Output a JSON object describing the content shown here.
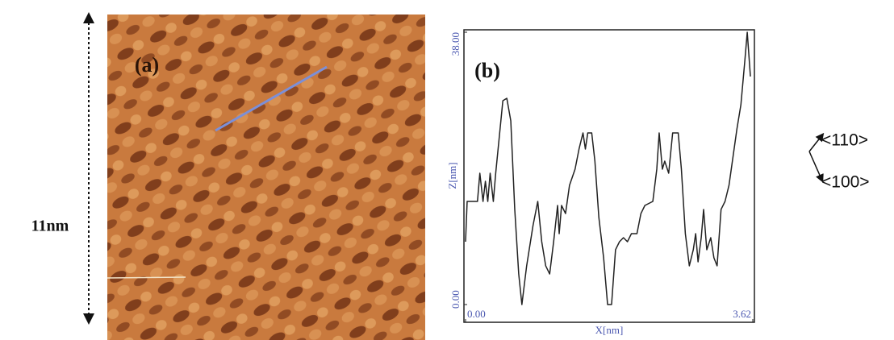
{
  "image_panel": {
    "label": "(a)",
    "scale_label": "11nm"
  },
  "directions": [
    "<110>",
    "<100>"
  ],
  "chart_data": {
    "type": "line",
    "panel_label": "(b)",
    "xlabel": "X[nm]",
    "ylabel": "Z[nm]",
    "color": "#222222",
    "xlim": [
      0,
      3.62
    ],
    "ylim": [
      0,
      38
    ],
    "xticks": [
      {
        "value": 0,
        "label": "0.00"
      },
      3.62
    ],
    "yticks": [
      {
        "value": 0,
        "label": "0.00"
      },
      {
        "value": 38,
        "label": "38.00"
      }
    ],
    "x": [
      0.0,
      0.02,
      0.05,
      0.15,
      0.18,
      0.22,
      0.25,
      0.28,
      0.31,
      0.35,
      0.38,
      0.42,
      0.47,
      0.52,
      0.57,
      0.62,
      0.67,
      0.71,
      0.77,
      0.85,
      0.91,
      0.96,
      1.01,
      1.06,
      1.11,
      1.16,
      1.18,
      1.21,
      1.26,
      1.31,
      1.38,
      1.43,
      1.48,
      1.51,
      1.54,
      1.59,
      1.63,
      1.68,
      1.74,
      1.79,
      1.84,
      1.89,
      1.94,
      1.99,
      2.04,
      2.09,
      2.16,
      2.21,
      2.26,
      2.36,
      2.41,
      2.44,
      2.48,
      2.51,
      2.56,
      2.61,
      2.68,
      2.72,
      2.77,
      2.82,
      2.87,
      2.9,
      2.93,
      2.97,
      3.0,
      3.04,
      3.09,
      3.13,
      3.17,
      3.22,
      3.27,
      3.32,
      3.42,
      3.47,
      3.52,
      3.55,
      3.59
    ],
    "values": [
      8.77,
      14.39,
      14.39,
      14.39,
      18.33,
      14.39,
      17.2,
      14.39,
      18.33,
      14.39,
      18.33,
      22.82,
      28.44,
      28.78,
      25.63,
      13.27,
      4.27,
      0,
      5.4,
      11.02,
      14.39,
      8.77,
      5.4,
      4.27,
      8.77,
      13.83,
      9.89,
      13.83,
      12.7,
      16.64,
      18.89,
      21.7,
      23.95,
      21.7,
      23.95,
      23.95,
      20.01,
      12.14,
      6.52,
      0,
      0,
      7.65,
      8.77,
      9.33,
      8.77,
      9.89,
      9.89,
      12.7,
      13.83,
      14.39,
      18.89,
      23.95,
      18.89,
      20.01,
      18.33,
      23.95,
      23.95,
      18.89,
      9.89,
      5.4,
      7.65,
      9.89,
      5.96,
      9.33,
      13.27,
      7.65,
      9.33,
      6.52,
      5.4,
      13.27,
      14.39,
      16.64,
      24.51,
      27.88,
      34.07,
      38.0,
      31.82
    ]
  }
}
